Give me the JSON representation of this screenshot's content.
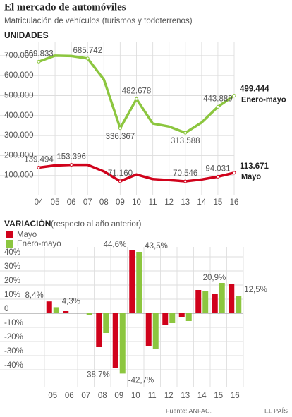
{
  "title": "El mercado de automóviles",
  "subtitle": "Matriculación de vehículos (turismos y todoterrenos)",
  "source": "Fuente: ANFAC.",
  "credit": "EL PAÍS",
  "chart_data": [
    {
      "type": "line",
      "title": "UNIDADES",
      "categories": [
        "04",
        "05",
        "06",
        "07",
        "08",
        "09",
        "10",
        "11",
        "12",
        "13",
        "14",
        "15",
        "16"
      ],
      "ylim": [
        0,
        770000
      ],
      "yticks": [
        {
          "value": 100000,
          "label": "100.000"
        },
        {
          "value": 200000,
          "label": "200.000"
        },
        {
          "value": 300000,
          "label": "300.000"
        },
        {
          "value": 400000,
          "label": "400.000"
        },
        {
          "value": 500000,
          "label": "500.000"
        },
        {
          "value": 600000,
          "label": "600.000"
        },
        {
          "value": 700000,
          "label": "700.000"
        }
      ],
      "grid": true,
      "series": [
        {
          "name": "Enero-mayo",
          "color": "#8cc63f",
          "values": [
            669833,
            700000,
            698000,
            685742,
            580000,
            336367,
            482678,
            360000,
            345000,
            313588,
            365000,
            443889,
            499444
          ],
          "value_labels": [
            "669.833",
            null,
            null,
            "685.742",
            null,
            "336.367",
            "482.678",
            null,
            null,
            "313.588",
            null,
            "443.889",
            "499.444"
          ]
        },
        {
          "name": "Mayo",
          "color": "#d0021b",
          "values": [
            139494,
            150000,
            153396,
            153000,
            120000,
            71160,
            105000,
            82000,
            77000,
            70546,
            80000,
            94031,
            113671
          ],
          "value_labels": [
            "139.494",
            null,
            "153.396",
            null,
            null,
            "71.160",
            null,
            null,
            null,
            "70.546",
            null,
            "94.031",
            "113.671"
          ]
        }
      ]
    },
    {
      "type": "bar",
      "title": "VARIACIÓN",
      "subtitle": "(respecto al año anterior)",
      "categories": [
        "05",
        "06",
        "07",
        "08",
        "09",
        "10",
        "11",
        "12",
        "13",
        "14",
        "15",
        "16"
      ],
      "ylim": [
        -52,
        47
      ],
      "yticks": [
        {
          "value": -40,
          "label": "-40%"
        },
        {
          "value": -30,
          "label": "-30%"
        },
        {
          "value": -20,
          "label": "-20%"
        },
        {
          "value": -10,
          "label": "-10%"
        },
        0,
        {
          "value": 10,
          "label": "10%"
        },
        {
          "value": 20,
          "label": "20%"
        },
        {
          "value": 30,
          "label": "30%"
        },
        {
          "value": 40,
          "label": "40%"
        }
      ],
      "grid": true,
      "series": [
        {
          "name": "Mayo",
          "color": "#d0021b",
          "values": [
            8.4,
            1.5,
            0,
            -24,
            -38.7,
            44.6,
            -23,
            -8,
            -2.5,
            16.5,
            14,
            20.9
          ],
          "value_labels": [
            "8,4%",
            null,
            null,
            null,
            "-38,7%",
            "44,6%",
            null,
            null,
            null,
            null,
            null,
            "20,9%"
          ]
        },
        {
          "name": "Enero-mayo",
          "color": "#8cc63f",
          "values": [
            4.3,
            0,
            -1.5,
            -14,
            -42.7,
            43.5,
            -25.5,
            -7,
            -5.5,
            16,
            21.5,
            12.5
          ],
          "value_labels": [
            "4,3%",
            null,
            null,
            null,
            "-42,7%",
            "43,5%",
            null,
            null,
            null,
            null,
            null,
            "12,5%"
          ]
        }
      ]
    }
  ]
}
